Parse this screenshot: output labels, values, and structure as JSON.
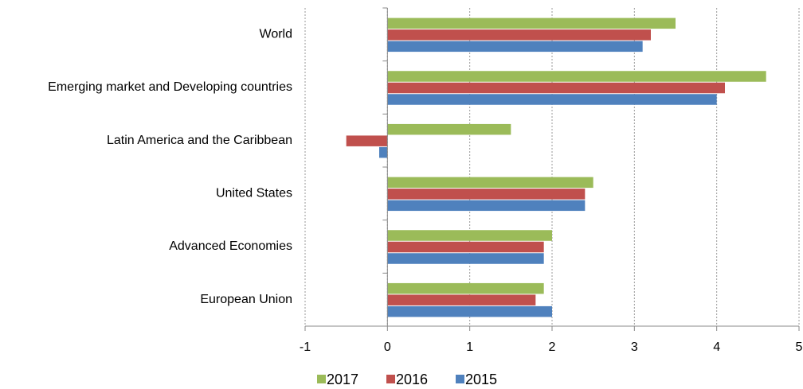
{
  "chart_data": {
    "type": "bar",
    "orientation": "horizontal",
    "categories": [
      "World",
      "Emerging market and Developing countries",
      "Latin America and the Caribbean",
      "United States",
      "Advanced Economies",
      "European Union"
    ],
    "series": [
      {
        "name": "2017",
        "color": "#9bbb59",
        "values": [
          3.5,
          4.6,
          1.5,
          2.5,
          2.0,
          1.9
        ]
      },
      {
        "name": "2016",
        "color": "#c0504d",
        "values": [
          3.2,
          4.1,
          -0.5,
          2.4,
          1.9,
          1.8
        ]
      },
      {
        "name": "2015",
        "color": "#4f81bd",
        "values": [
          3.1,
          4.0,
          -0.1,
          2.4,
          1.9,
          2.0
        ]
      }
    ],
    "xlim": [
      -1,
      5
    ],
    "xticks": [
      -1,
      0,
      1,
      2,
      3,
      4,
      5
    ],
    "grid": true,
    "legend": "bottom"
  }
}
